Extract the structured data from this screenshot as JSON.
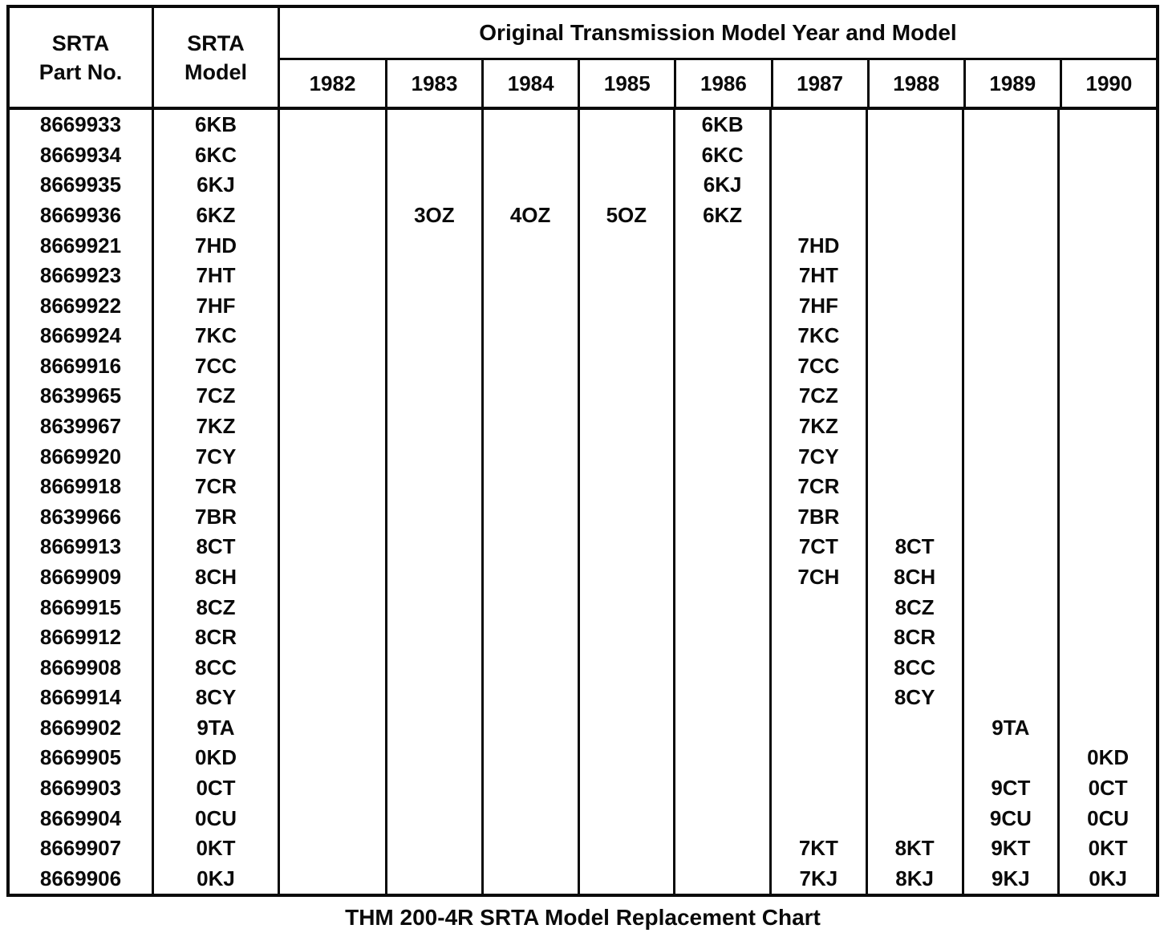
{
  "page": {
    "caption": "THM 200-4R SRTA Model Replacement Chart"
  },
  "colors": {
    "ink": "#0a0a0a",
    "paper": "#ffffff"
  },
  "table": {
    "header": {
      "part_line1": "SRTA",
      "part_line2": "Part No.",
      "model_line1": "SRTA",
      "model_line2": "Model",
      "years_title": "Original Transmission Model Year and Model",
      "years": [
        "1982",
        "1983",
        "1984",
        "1985",
        "1986",
        "1987",
        "1988",
        "1989",
        "1990"
      ]
    },
    "rows": [
      {
        "part": "8669933",
        "model": "6KB",
        "cells": [
          "",
          "",
          "",
          "",
          "6KB",
          "",
          "",
          "",
          ""
        ]
      },
      {
        "part": "8669934",
        "model": "6KC",
        "cells": [
          "",
          "",
          "",
          "",
          "6KC",
          "",
          "",
          "",
          ""
        ]
      },
      {
        "part": "8669935",
        "model": "6KJ",
        "cells": [
          "",
          "",
          "",
          "",
          "6KJ",
          "",
          "",
          "",
          ""
        ]
      },
      {
        "part": "8669936",
        "model": "6KZ",
        "cells": [
          "",
          "3OZ",
          "4OZ",
          "5OZ",
          "6KZ",
          "",
          "",
          "",
          ""
        ]
      },
      {
        "part": "8669921",
        "model": "7HD",
        "cells": [
          "",
          "",
          "",
          "",
          "",
          "7HD",
          "",
          "",
          ""
        ]
      },
      {
        "part": "8669923",
        "model": "7HT",
        "cells": [
          "",
          "",
          "",
          "",
          "",
          "7HT",
          "",
          "",
          ""
        ]
      },
      {
        "part": "8669922",
        "model": "7HF",
        "cells": [
          "",
          "",
          "",
          "",
          "",
          "7HF",
          "",
          "",
          ""
        ]
      },
      {
        "part": "8669924",
        "model": "7KC",
        "cells": [
          "",
          "",
          "",
          "",
          "",
          "7KC",
          "",
          "",
          ""
        ]
      },
      {
        "part": "8669916",
        "model": "7CC",
        "cells": [
          "",
          "",
          "",
          "",
          "",
          "7CC",
          "",
          "",
          ""
        ]
      },
      {
        "part": "8639965",
        "model": "7CZ",
        "cells": [
          "",
          "",
          "",
          "",
          "",
          "7CZ",
          "",
          "",
          ""
        ]
      },
      {
        "part": "8639967",
        "model": "7KZ",
        "cells": [
          "",
          "",
          "",
          "",
          "",
          "7KZ",
          "",
          "",
          ""
        ]
      },
      {
        "part": "8669920",
        "model": "7CY",
        "cells": [
          "",
          "",
          "",
          "",
          "",
          "7CY",
          "",
          "",
          ""
        ]
      },
      {
        "part": "8669918",
        "model": "7CR",
        "cells": [
          "",
          "",
          "",
          "",
          "",
          "7CR",
          "",
          "",
          ""
        ]
      },
      {
        "part": "8639966",
        "model": "7BR",
        "cells": [
          "",
          "",
          "",
          "",
          "",
          "7BR",
          "",
          "",
          ""
        ]
      },
      {
        "part": "8669913",
        "model": "8CT",
        "cells": [
          "",
          "",
          "",
          "",
          "",
          "7CT",
          "8CT",
          "",
          ""
        ]
      },
      {
        "part": "8669909",
        "model": "8CH",
        "cells": [
          "",
          "",
          "",
          "",
          "",
          "7CH",
          "8CH",
          "",
          ""
        ]
      },
      {
        "part": "8669915",
        "model": "8CZ",
        "cells": [
          "",
          "",
          "",
          "",
          "",
          "",
          "8CZ",
          "",
          ""
        ]
      },
      {
        "part": "8669912",
        "model": "8CR",
        "cells": [
          "",
          "",
          "",
          "",
          "",
          "",
          "8CR",
          "",
          ""
        ]
      },
      {
        "part": "8669908",
        "model": "8CC",
        "cells": [
          "",
          "",
          "",
          "",
          "",
          "",
          "8CC",
          "",
          ""
        ]
      },
      {
        "part": "8669914",
        "model": "8CY",
        "cells": [
          "",
          "",
          "",
          "",
          "",
          "",
          "8CY",
          "",
          ""
        ]
      },
      {
        "part": "8669902",
        "model": "9TA",
        "cells": [
          "",
          "",
          "",
          "",
          "",
          "",
          "",
          "9TA",
          ""
        ]
      },
      {
        "part": "8669905",
        "model": "0KD",
        "cells": [
          "",
          "",
          "",
          "",
          "",
          "",
          "",
          "",
          "0KD"
        ]
      },
      {
        "part": "8669903",
        "model": "0CT",
        "cells": [
          "",
          "",
          "",
          "",
          "",
          "",
          "",
          "9CT",
          "0CT"
        ]
      },
      {
        "part": "8669904",
        "model": "0CU",
        "cells": [
          "",
          "",
          "",
          "",
          "",
          "",
          "",
          "9CU",
          "0CU"
        ]
      },
      {
        "part": "8669907",
        "model": "0KT",
        "cells": [
          "",
          "",
          "",
          "",
          "",
          "7KT",
          "8KT",
          "9KT",
          "0KT"
        ]
      },
      {
        "part": "8669906",
        "model": "0KJ",
        "cells": [
          "",
          "",
          "",
          "",
          "",
          "7KJ",
          "8KJ",
          "9KJ",
          "0KJ"
        ]
      }
    ]
  }
}
